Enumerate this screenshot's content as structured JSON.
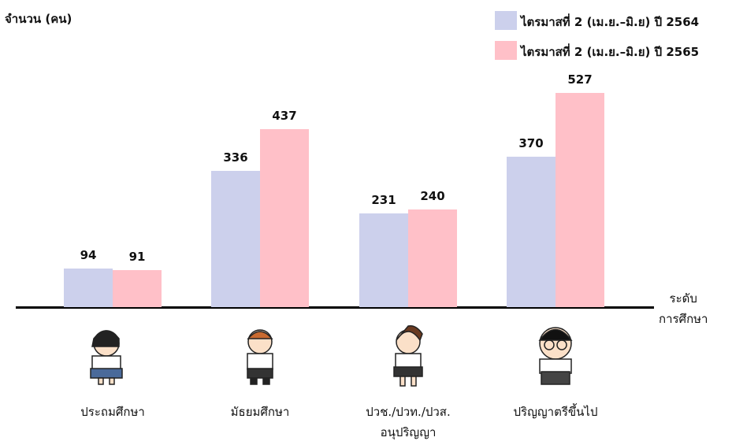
{
  "chart_data": {
    "type": "bar",
    "y_label": "จำนวน (คน)",
    "x_label": "ระดับ\nการศึกษา",
    "categories": [
      "ประถมศึกษา",
      "มัธยมศึกษา",
      "ปวช./ปวท./ปวส.\nอนุปริญญา",
      "ปริญญาตรีขึ้นไป"
    ],
    "series": [
      {
        "name": "ไตรมาสที่ 2 (เม.ย.–มิ.ย) ปี 2564",
        "color": "#ccd0ec",
        "values": [
          94,
          336,
          231,
          370
        ]
      },
      {
        "name": "ไตรมาสที่ 2 (เม.ย.–มิ.ย) ปี 2565",
        "color": "#ffc0c8",
        "values": [
          91,
          437,
          240,
          527
        ]
      }
    ]
  }
}
